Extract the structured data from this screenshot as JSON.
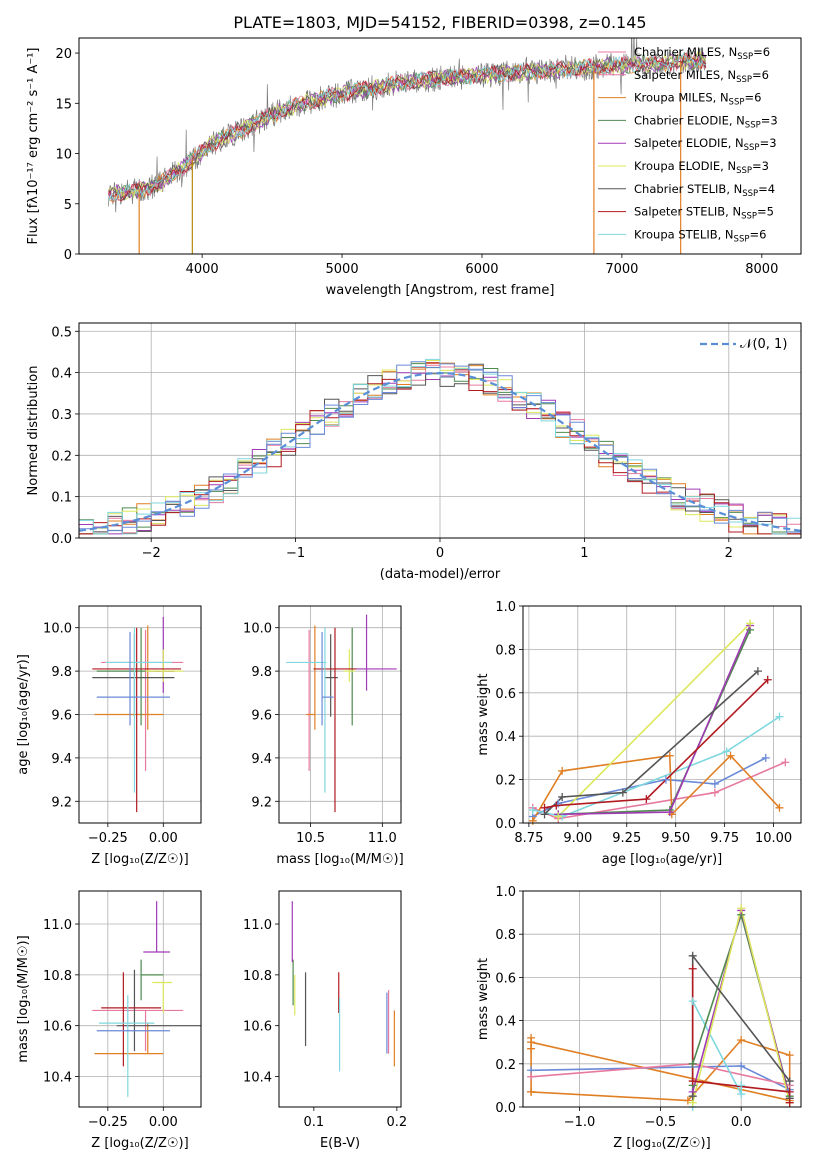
{
  "figure_title": "PLATE=1803, MJD=54152, FIBERID=0398, z=0.145",
  "colors": [
    "#e8799e",
    "#e07f24",
    "#6f9aa0",
    "#4f8a4f",
    "#a13ab5",
    "#dce85c",
    "#555555",
    "#b11a20",
    "#7fd7df",
    "#6a8ad8"
  ],
  "chart_data": [
    {
      "id": "spectrum",
      "type": "line",
      "xlabel": "wavelength [Angstrom, rest frame]",
      "ylabel": "Flux [fλ10⁻¹⁷ erg cm⁻² s⁻¹ A⁻¹]",
      "xlim": [
        3120,
        8280
      ],
      "ylim": [
        0,
        21.5
      ],
      "xticks": [
        4000,
        5000,
        6000,
        7000,
        8000
      ],
      "yticks": [
        0,
        5,
        10,
        15,
        20
      ],
      "grid": false,
      "legend_position": "top-right",
      "continuum_x": [
        3330,
        3500,
        3700,
        3900,
        4050,
        4300,
        4600,
        5000,
        5400,
        5800,
        6200,
        6600,
        7000,
        7400,
        7600
      ],
      "continuum_y": [
        6.0,
        6.2,
        7.0,
        9.0,
        10.8,
        12.5,
        14.5,
        16.0,
        17.0,
        17.6,
        18.0,
        18.4,
        18.8,
        19.1,
        19.3
      ],
      "series": [
        {
          "name": "Chabrier MILES, N",
          "sub": "SSP",
          "suffix": "=6",
          "color": "#e8799e"
        },
        {
          "name": "Salpeter MILES, N",
          "sub": "SSP",
          "suffix": "=6",
          "color": "#e8799e"
        },
        {
          "name": "Kroupa MILES, N",
          "sub": "SSP",
          "suffix": "=6",
          "color": "#e07f24"
        },
        {
          "name": "Chabrier ELODIE, N",
          "sub": "SSP",
          "suffix": "=3",
          "color": "#4f8a4f"
        },
        {
          "name": "Salpeter ELODIE, N",
          "sub": "SSP",
          "suffix": "=3",
          "color": "#a13ab5"
        },
        {
          "name": "Kroupa ELODIE, N",
          "sub": "SSP",
          "suffix": "=3",
          "color": "#dce85c"
        },
        {
          "name": "Chabrier STELIB, N",
          "sub": "SSP",
          "suffix": "=4",
          "color": "#555555"
        },
        {
          "name": "Salpeter STELIB, N",
          "sub": "SSP",
          "suffix": "=5",
          "color": "#b11a20"
        },
        {
          "name": "Kroupa STELIB, N",
          "sub": "SSP",
          "suffix": "=6",
          "color": "#7fd7df"
        }
      ]
    },
    {
      "id": "residuals",
      "type": "line",
      "xlabel": "(data-model)/error",
      "ylabel": "Normed distribution",
      "xlim": [
        -2.5,
        2.5
      ],
      "ylim": [
        0,
        0.52
      ],
      "xticks": [
        -2,
        -1,
        0,
        1,
        2
      ],
      "yticks": [
        0.0,
        0.1,
        0.2,
        0.3,
        0.4,
        0.5
      ],
      "grid": true,
      "legend_position": "top-right",
      "reference_curve": {
        "name": "𝒩(0, 1)",
        "mean": 0,
        "sigma": 1,
        "color": "#5a8fd8"
      },
      "bin_width": 0.1,
      "histogram_colors": [
        "#e8799e",
        "#e07f24",
        "#4f8a4f",
        "#a13ab5",
        "#dce85c",
        "#555555",
        "#b11a20",
        "#7fd7df",
        "#6a8ad8"
      ]
    },
    {
      "id": "age_vs_Z",
      "type": "scatter",
      "xlabel": "Z [log₁₀(Z/Z☉)]",
      "ylabel": "age  [log₁₀(age/yr)]",
      "xlim": [
        -0.38,
        0.17
      ],
      "ylim": [
        9.1,
        10.1
      ],
      "xticks": [
        -0.25,
        0.0
      ],
      "xticklabels": [
        "−0.25",
        "0.00"
      ],
      "yticks": [
        9.2,
        9.4,
        9.6,
        9.8,
        10.0
      ],
      "grid": true,
      "errorbars": [
        {
          "x": -0.08,
          "xerr": [
            0.2,
            0.17
          ],
          "y": 9.84,
          "yerr": [
            0.5,
            0.15
          ],
          "color": "#e8799e"
        },
        {
          "x": -0.07,
          "xerr": [
            0.24,
            0.07
          ],
          "y": 9.6,
          "yerr": [
            0.07,
            0.41
          ],
          "color": "#e07f24"
        },
        {
          "x": -0.1,
          "xerr": [
            0.2,
            0.15
          ],
          "y": 9.8,
          "yerr": [
            0.25,
            0.2
          ],
          "color": "#4f8a4f"
        },
        {
          "x": 0.0,
          "xerr": [
            0.04,
            0.05
          ],
          "y": 9.8,
          "yerr": [
            0.1,
            0.25
          ],
          "color": "#a13ab5"
        },
        {
          "x": 0.0,
          "xerr": [
            0.08,
            0.09
          ],
          "y": 9.8,
          "yerr": [
            0.05,
            0.1
          ],
          "color": "#dce85c"
        },
        {
          "x": -0.13,
          "xerr": [
            0.19,
            0.18
          ],
          "y": 9.77,
          "yerr": [
            0.18,
            0.2
          ],
          "color": "#555555"
        },
        {
          "x": -0.12,
          "xerr": [
            0.2,
            0.2
          ],
          "y": 9.81,
          "yerr": [
            0.66,
            0.19
          ],
          "color": "#b11a20"
        },
        {
          "x": -0.13,
          "xerr": [
            0.13,
            0.17
          ],
          "y": 9.84,
          "yerr": [
            0.6,
            0.16
          ],
          "color": "#7fd7df"
        },
        {
          "x": -0.15,
          "xerr": [
            0.15,
            0.18
          ],
          "y": 9.68,
          "yerr": [
            0.13,
            0.3
          ],
          "color": "#6a8ad8"
        }
      ]
    },
    {
      "id": "age_vs_mass",
      "type": "scatter",
      "xlabel": "mass [log₁₀(M/M☉)]",
      "ylabel": "",
      "xlim": [
        10.28,
        11.13
      ],
      "ylim": [
        9.1,
        10.1
      ],
      "xticks": [
        10.5,
        11.0
      ],
      "xticklabels": [
        "10.5",
        "11.0"
      ],
      "yticks": [
        9.2,
        9.4,
        9.6,
        9.8,
        10.0
      ],
      "grid": true,
      "errorbars": [
        {
          "x": 10.49,
          "xerr": [
            0.0,
            0.02
          ],
          "y": 9.84,
          "yerr": [
            0.5,
            0.15
          ],
          "color": "#e8799e"
        },
        {
          "x": 10.53,
          "xerr": [
            0.06,
            0.0
          ],
          "y": 9.6,
          "yerr": [
            0.07,
            0.41
          ],
          "color": "#e07f24"
        },
        {
          "x": 10.79,
          "xerr": [
            0.01,
            0.0
          ],
          "y": 9.8,
          "yerr": [
            0.25,
            0.2
          ],
          "color": "#4f8a4f"
        },
        {
          "x": 10.89,
          "xerr": [
            0.07,
            0.21
          ],
          "y": 9.81,
          "yerr": [
            0.1,
            0.25
          ],
          "color": "#a13ab5"
        },
        {
          "x": 10.77,
          "xerr": [
            0.04,
            0.04
          ],
          "y": 9.8,
          "yerr": [
            0.05,
            0.1
          ],
          "color": "#dce85c"
        },
        {
          "x": 10.64,
          "xerr": [
            0.04,
            0.05
          ],
          "y": 9.77,
          "yerr": [
            0.18,
            0.2
          ],
          "color": "#555555"
        },
        {
          "x": 10.67,
          "xerr": [
            0.15,
            0.15
          ],
          "y": 9.81,
          "yerr": [
            0.66,
            0.19
          ],
          "color": "#b11a20"
        },
        {
          "x": 10.6,
          "xerr": [
            0.27,
            0.01
          ],
          "y": 9.84,
          "yerr": [
            0.6,
            0.16
          ],
          "color": "#7fd7df"
        },
        {
          "x": 10.58,
          "xerr": [
            0.0,
            0.08
          ],
          "y": 9.68,
          "yerr": [
            0.13,
            0.3
          ],
          "color": "#6a8ad8"
        }
      ]
    },
    {
      "id": "mass_weight_vs_age",
      "type": "line",
      "xlabel": "age  [log₁₀(age/yr)]",
      "ylabel": "mass weight",
      "xlim": [
        8.72,
        10.14
      ],
      "ylim": [
        0,
        1.0
      ],
      "xticks": [
        8.75,
        9.0,
        9.25,
        9.5,
        9.75,
        10.0
      ],
      "xticklabels": [
        "8.75",
        "9.00",
        "9.25",
        "9.50",
        "9.75",
        "10.00"
      ],
      "yticks": [
        0.0,
        0.2,
        0.4,
        0.6,
        0.8,
        1.0
      ],
      "grid": true,
      "series": [
        {
          "color": "#e8799e",
          "x": [
            8.77,
            8.9,
            9.7,
            10.06
          ],
          "y": [
            0.07,
            0.02,
            0.14,
            0.28
          ]
        },
        {
          "color": "#6a8ad8",
          "x": [
            8.77,
            8.9,
            9.45,
            9.7,
            9.96
          ],
          "y": [
            0.03,
            0.09,
            0.2,
            0.18,
            0.3
          ]
        },
        {
          "color": "#e07f24",
          "x": [
            8.77,
            8.92,
            9.47,
            9.48,
            9.78,
            10.03
          ],
          "y": [
            0.01,
            0.24,
            0.31,
            0.04,
            0.31,
            0.07
          ]
        },
        {
          "color": "#7fd7df",
          "x": [
            8.77,
            8.92,
            9.76,
            10.03
          ],
          "y": [
            0.06,
            0.03,
            0.33,
            0.49
          ]
        },
        {
          "color": "#4f8a4f",
          "x": [
            8.9,
            9.47,
            9.88
          ],
          "y": [
            0.04,
            0.06,
            0.89
          ]
        },
        {
          "color": "#a13ab5",
          "x": [
            8.9,
            9.47,
            9.88
          ],
          "y": [
            0.04,
            0.05,
            0.91
          ]
        },
        {
          "color": "#dce85c",
          "x": [
            8.9,
            9.88
          ],
          "y": [
            0.03,
            0.92
          ]
        },
        {
          "color": "#555555",
          "x": [
            8.83,
            8.92,
            9.23,
            9.92
          ],
          "y": [
            0.04,
            0.12,
            0.14,
            0.7
          ]
        },
        {
          "color": "#b11a20",
          "x": [
            8.83,
            8.89,
            9.35,
            9.97
          ],
          "y": [
            0.07,
            0.08,
            0.11,
            0.66
          ]
        }
      ]
    },
    {
      "id": "mass_vs_Z",
      "type": "scatter",
      "xlabel": "Z [log₁₀(Z/Z☉)]",
      "ylabel": "mass [log₁₀(M/M☉)]",
      "xlim": [
        -0.38,
        0.17
      ],
      "ylim": [
        10.28,
        11.13
      ],
      "xticks": [
        -0.25,
        0.0
      ],
      "xticklabels": [
        "−0.25",
        "0.00"
      ],
      "yticks": [
        10.4,
        10.6,
        10.8,
        11.0
      ],
      "grid": true,
      "errorbars": [
        {
          "x": -0.08,
          "xerr": [
            0.24,
            0.17
          ],
          "y": 10.66,
          "yerr": [
            0.16,
            0.0
          ],
          "color": "#e8799e"
        },
        {
          "x": -0.07,
          "xerr": [
            0.24,
            0.07
          ],
          "y": 10.49,
          "yerr": [
            0.0,
            0.12
          ],
          "color": "#e07f24"
        },
        {
          "x": -0.1,
          "xerr": [
            0.0,
            0.1
          ],
          "y": 10.8,
          "yerr": [
            0.1,
            0.06
          ],
          "color": "#4f8a4f"
        },
        {
          "x": -0.03,
          "xerr": [
            0.06,
            0.06
          ],
          "y": 10.89,
          "yerr": [
            0.0,
            0.2
          ],
          "color": "#a13ab5"
        },
        {
          "x": 0.0,
          "xerr": [
            0.05,
            0.04
          ],
          "y": 10.77,
          "yerr": [
            0.12,
            0.0
          ],
          "color": "#dce85c"
        },
        {
          "x": -0.13,
          "xerr": [
            0.08,
            0.3
          ],
          "y": 10.6,
          "yerr": [
            0.1,
            0.22
          ],
          "color": "#555555"
        },
        {
          "x": -0.18,
          "xerr": [
            0.1,
            0.17
          ],
          "y": 10.67,
          "yerr": [
            0.23,
            0.14
          ],
          "color": "#b11a20"
        },
        {
          "x": -0.16,
          "xerr": [
            0.13,
            0.12
          ],
          "y": 10.61,
          "yerr": [
            0.29,
            0.11
          ],
          "color": "#7fd7df"
        },
        {
          "x": -0.1,
          "xerr": [
            0.2,
            0.13
          ],
          "y": 10.58,
          "yerr": [
            0.0,
            0.0
          ],
          "color": "#6a8ad8"
        }
      ]
    },
    {
      "id": "mass_vs_EBV",
      "type": "scatter",
      "xlabel": "E(B-V)",
      "ylabel": "",
      "xlim": [
        0.058,
        0.205
      ],
      "ylim": [
        10.28,
        11.13
      ],
      "xticks": [
        0.1,
        0.2
      ],
      "xticklabels": [
        "0.1",
        "0.2"
      ],
      "yticks": [
        10.4,
        10.6,
        10.8,
        11.0
      ],
      "grid": false,
      "errorbars": [
        {
          "x": 0.19,
          "y": 10.63,
          "yerr": [
            0.14,
            0.11
          ],
          "color": "#e8799e"
        },
        {
          "x": 0.197,
          "y": 10.56,
          "yerr": [
            0.12,
            0.1
          ],
          "color": "#e07f24"
        },
        {
          "x": 0.075,
          "y": 10.76,
          "yerr": [
            0.08,
            0.1
          ],
          "color": "#4f8a4f"
        },
        {
          "x": 0.074,
          "y": 10.93,
          "yerr": [
            0.08,
            0.16
          ],
          "color": "#a13ab5"
        },
        {
          "x": 0.077,
          "y": 10.72,
          "yerr": [
            0.08,
            0.08
          ],
          "color": "#dce85c"
        },
        {
          "x": 0.09,
          "y": 10.66,
          "yerr": [
            0.14,
            0.15
          ],
          "color": "#555555"
        },
        {
          "x": 0.13,
          "y": 10.72,
          "yerr": [
            0.07,
            0.09
          ],
          "color": "#b11a20"
        },
        {
          "x": 0.131,
          "y": 10.57,
          "yerr": [
            0.15,
            0.14
          ],
          "color": "#7fd7df"
        },
        {
          "x": 0.188,
          "y": 10.6,
          "yerr": [
            0.11,
            0.13
          ],
          "color": "#6a8ad8"
        }
      ]
    },
    {
      "id": "mass_weight_vs_Z",
      "type": "line",
      "xlabel": "Z [log₁₀(Z/Z☉)]",
      "ylabel": "mass weight",
      "xlim": [
        -1.35,
        0.37
      ],
      "ylim": [
        0,
        1.0
      ],
      "xticks": [
        -1.0,
        -0.5,
        0.0
      ],
      "xticklabels": [
        "−1.0",
        "−0.5",
        "0.0"
      ],
      "yticks": [
        0.0,
        0.2,
        0.4,
        0.6,
        0.8,
        1.0
      ],
      "grid": true,
      "series": [
        {
          "color": "#e07f24",
          "x": [
            -1.3,
            -0.33,
            0.0,
            0.3,
            0.3,
            -1.3,
            -1.3,
            -1.3,
            -1.3
          ],
          "y": [
            0.07,
            0.03,
            0.31,
            0.24,
            0.03,
            0.3,
            0.32,
            0.27,
            0.07
          ]
        },
        {
          "color": "#6a8ad8",
          "x": [
            -1.3,
            0.0,
            0.3
          ],
          "y": [
            0.17,
            0.19,
            0.08
          ]
        },
        {
          "color": "#e8799e",
          "x": [
            -1.3,
            -0.3,
            0.3
          ],
          "y": [
            0.14,
            0.2,
            0.1
          ]
        },
        {
          "color": "#7fd7df",
          "x": [
            -0.3,
            -0.3,
            0.0,
            0.0
          ],
          "y": [
            0.0,
            0.49,
            0.06,
            0.1
          ]
        },
        {
          "color": "#4f8a4f",
          "x": [
            -0.3,
            -0.3,
            0.0,
            0.3
          ],
          "y": [
            0.1,
            0.2,
            0.89,
            0.05
          ]
        },
        {
          "color": "#a13ab5",
          "x": [
            -0.3,
            0.0,
            0.3
          ],
          "y": [
            0.07,
            0.91,
            0.04
          ]
        },
        {
          "color": "#dce85c",
          "x": [
            -0.3,
            0.0,
            0.3
          ],
          "y": [
            0.02,
            0.92,
            0.02
          ]
        },
        {
          "color": "#555555",
          "x": [
            -0.3,
            -0.3,
            0.3,
            0.3
          ],
          "y": [
            0.05,
            0.7,
            0.12,
            0.04
          ]
        },
        {
          "color": "#b11a20",
          "x": [
            -0.3,
            -0.3,
            0.3,
            0.3
          ],
          "y": [
            0.64,
            0.12,
            0.07,
            0.02
          ]
        }
      ]
    }
  ]
}
